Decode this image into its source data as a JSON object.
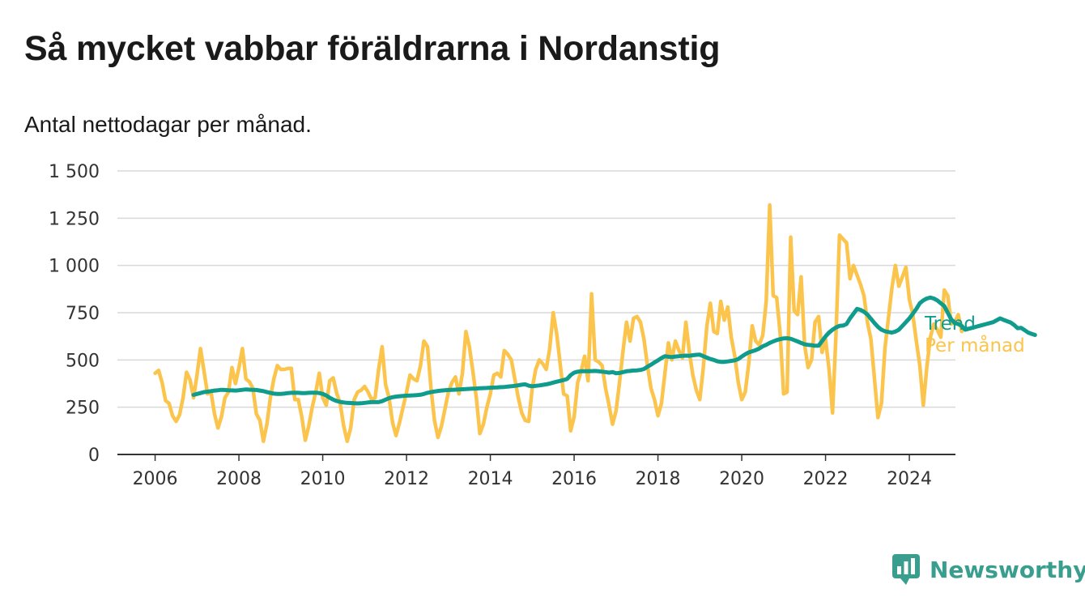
{
  "title": "Så mycket vabbar föräldrarna i Nordanstig",
  "subtitle": "Antal nettodagar per månad.",
  "brand": {
    "name": "Newsworthy",
    "icon": "newsworthy-logo-icon",
    "color": "#3a9e8f"
  },
  "colors": {
    "per_month": "#fbc44c",
    "trend": "#109c8c",
    "grid": "#d9d9d9",
    "axis": "#333333"
  },
  "chart_data": {
    "type": "line",
    "title": "Så mycket vabbar föräldrarna i Nordanstig",
    "subtitle": "Antal nettodagar per månad.",
    "xlim": [
      2005.1,
      2025.1
    ],
    "ylim": [
      0,
      1500
    ],
    "x_ticks": [
      2006,
      2008,
      2010,
      2012,
      2014,
      2016,
      2018,
      2020,
      2022,
      2024
    ],
    "y_ticks": [
      {
        "value": 0,
        "label": "0"
      },
      {
        "value": 250,
        "label": "250"
      },
      {
        "value": 500,
        "label": "500"
      },
      {
        "value": 750,
        "label": "750"
      },
      {
        "value": 1000,
        "label": "1 000"
      },
      {
        "value": 1250,
        "label": "1 250"
      },
      {
        "value": 1500,
        "label": "1 500"
      }
    ],
    "grid": true,
    "legend": "inline labels at line ends (right)",
    "series": [
      {
        "name": "Per månad",
        "color": "#fbc44c",
        "start": "2006-01",
        "frequency": "monthly",
        "values": [
          430,
          445,
          380,
          285,
          270,
          205,
          175,
          210,
          300,
          435,
          395,
          300,
          420,
          560,
          440,
          320,
          330,
          215,
          140,
          200,
          300,
          330,
          460,
          375,
          460,
          560,
          400,
          385,
          350,
          215,
          180,
          70,
          160,
          300,
          400,
          470,
          450,
          450,
          455,
          455,
          290,
          290,
          200,
          75,
          150,
          250,
          330,
          430,
          300,
          260,
          390,
          405,
          325,
          270,
          150,
          70,
          140,
          290,
          330,
          340,
          360,
          330,
          290,
          300,
          450,
          570,
          370,
          300,
          170,
          100,
          170,
          250,
          330,
          420,
          400,
          390,
          470,
          600,
          570,
          350,
          180,
          90,
          150,
          240,
          330,
          380,
          410,
          320,
          430,
          650,
          570,
          440,
          300,
          110,
          160,
          250,
          320,
          420,
          430,
          410,
          550,
          530,
          500,
          400,
          300,
          220,
          180,
          175,
          350,
          450,
          500,
          480,
          450,
          560,
          750,
          640,
          480,
          320,
          310,
          125,
          200,
          380,
          440,
          520,
          390,
          850,
          500,
          490,
          470,
          350,
          260,
          160,
          230,
          380,
          550,
          700,
          600,
          720,
          730,
          700,
          610,
          470,
          350,
          290,
          205,
          270,
          430,
          590,
          500,
          600,
          550,
          510,
          700,
          540,
          420,
          340,
          290,
          460,
          680,
          800,
          650,
          640,
          810,
          710,
          780,
          620,
          520,
          380,
          290,
          330,
          480,
          680,
          600,
          580,
          630,
          810,
          1320,
          840,
          830,
          640,
          320,
          330,
          1150,
          760,
          740,
          940,
          580,
          460,
          500,
          700,
          730,
          540,
          610,
          450,
          220,
          640,
          1160,
          1140,
          1120,
          930,
          1000,
          950,
          900,
          840,
          700,
          610,
          400,
          195,
          270,
          560,
          720,
          880,
          1000,
          890,
          940,
          990,
          820,
          740,
          600,
          470,
          260,
          460,
          620,
          690,
          660,
          620,
          870,
          840,
          690,
          700,
          740,
          650
        ]
      },
      {
        "name": "Trend",
        "color": "#109c8c",
        "start": "2006-12",
        "frequency": "monthly",
        "values": [
          315,
          320,
          325,
          330,
          332,
          335,
          338,
          340,
          342,
          341,
          340,
          339,
          338,
          340,
          342,
          344,
          343,
          342,
          341,
          338,
          335,
          330,
          326,
          322,
          320,
          320,
          322,
          325,
          326,
          327,
          326,
          325,
          325,
          326,
          327,
          327,
          325,
          320,
          312,
          300,
          290,
          283,
          278,
          275,
          273,
          272,
          271,
          270,
          271,
          273,
          275,
          277,
          277,
          277,
          282,
          290,
          298,
          303,
          306,
          308,
          310,
          311,
          312,
          313,
          314,
          316,
          320,
          326,
          330,
          333,
          336,
          338,
          340,
          341,
          342,
          343,
          344,
          345,
          346,
          347,
          348,
          349,
          350,
          351,
          352,
          353,
          354,
          355,
          356,
          357,
          359,
          361,
          363,
          366,
          369,
          371,
          364,
          361,
          363,
          365,
          368,
          371,
          375,
          380,
          385,
          389,
          394,
          400,
          420,
          433,
          438,
          440,
          440,
          440,
          441,
          442,
          440,
          438,
          436,
          433,
          436,
          430,
          431,
          436,
          440,
          442,
          444,
          445,
          447,
          452,
          464,
          475,
          487,
          498,
          510,
          520,
          517,
          515,
          518,
          520,
          522,
          523,
          522,
          525,
          527,
          528,
          520,
          512,
          505,
          500,
          493,
          490,
          490,
          492,
          495,
          498,
          505,
          518,
          530,
          540,
          546,
          552,
          560,
          572,
          580,
          590,
          598,
          605,
          610,
          614,
          615,
          612,
          605,
          598,
          590,
          583,
          580,
          578,
          575,
          575,
          600,
          625,
          645,
          660,
          672,
          680,
          682,
          690,
          720,
          745,
          770,
          765,
          755,
          740,
          718,
          695,
          675,
          660,
          652,
          648,
          645,
          650,
          660,
          680,
          700,
          720,
          745,
          770,
          800,
          815,
          825,
          830,
          825,
          815,
          800,
          785,
          750,
          715,
          695,
          690,
          680,
          660,
          665,
          670,
          675,
          680,
          685,
          690,
          695,
          700,
          710,
          720,
          712,
          705,
          698,
          685,
          668,
          670,
          658,
          645,
          638,
          632
        ]
      }
    ],
    "series_labels": [
      {
        "name": "Trend",
        "color": "#109c8c"
      },
      {
        "name": "Per månad",
        "color": "#fbc44c"
      }
    ]
  }
}
